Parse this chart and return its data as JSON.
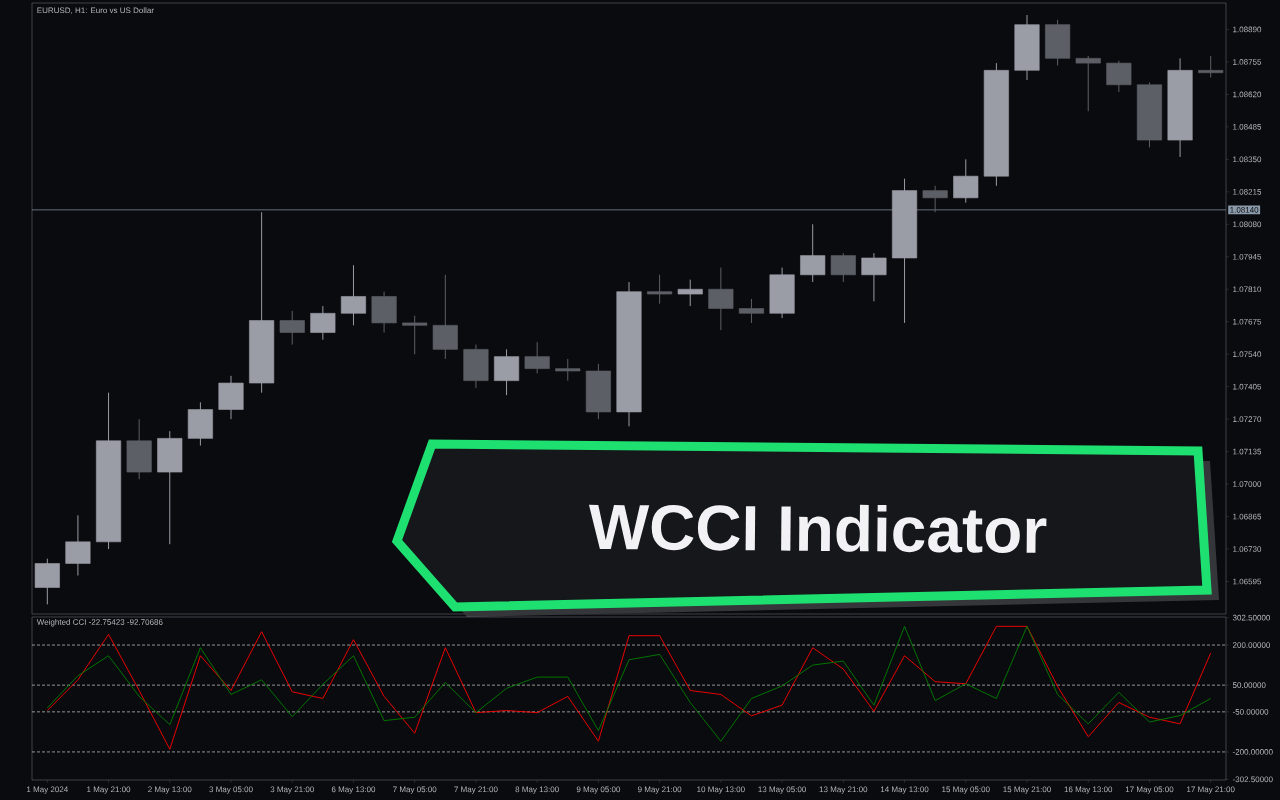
{
  "chart_data": [
    {
      "type": "candlestick",
      "title": "EURUSD, H1:  Euro vs US Dollar",
      "annotations": [
        "WCCI Indicator"
      ],
      "categories": [
        null,
        null,
        null,
        null,
        null,
        null,
        null,
        null,
        null,
        null,
        null,
        null,
        null,
        null,
        null,
        null,
        null,
        null,
        null,
        null,
        null,
        null,
        null,
        null,
        null,
        null,
        null,
        null,
        null,
        null,
        null,
        null,
        null,
        null,
        null,
        null,
        null,
        null,
        null
      ],
      "ohlc": [
        [
          1.0657,
          1.0669,
          1.065,
          1.0667
        ],
        [
          1.0667,
          1.0687,
          1.0662,
          1.0676
        ],
        [
          1.0676,
          1.0738,
          1.0673,
          1.0718
        ],
        [
          1.0718,
          1.0727,
          1.0702,
          1.0705
        ],
        [
          1.0705,
          1.0722,
          1.0675,
          1.0719
        ],
        [
          1.0719,
          1.0734,
          1.0716,
          1.0731
        ],
        [
          1.0731,
          1.0745,
          1.0727,
          1.0742
        ],
        [
          1.0742,
          1.0813,
          1.0738,
          1.0768
        ],
        [
          1.0768,
          1.0772,
          1.0758,
          1.0763
        ],
        [
          1.0763,
          1.0774,
          1.076,
          1.0771
        ],
        [
          1.0771,
          1.0791,
          1.0766,
          1.0778
        ],
        [
          1.0778,
          1.078,
          1.0763,
          1.0767
        ],
        [
          1.0767,
          1.077,
          1.0754,
          1.0766
        ],
        [
          1.0766,
          1.0787,
          1.0752,
          1.0756
        ],
        [
          1.0756,
          1.0758,
          1.074,
          1.0743
        ],
        [
          1.0743,
          1.0756,
          1.0737,
          1.0753
        ],
        [
          1.0753,
          1.0759,
          1.0746,
          1.0748
        ],
        [
          1.0748,
          1.0752,
          1.0743,
          1.0747
        ],
        [
          1.0747,
          1.075,
          1.0727,
          1.073
        ],
        [
          1.073,
          1.0784,
          1.0724,
          1.078
        ],
        [
          1.078,
          1.0787,
          1.0775,
          1.0779
        ],
        [
          1.0779,
          1.0785,
          1.0774,
          1.0781
        ],
        [
          1.0781,
          1.079,
          1.0764,
          1.0773
        ],
        [
          1.0773,
          1.0777,
          1.0767,
          1.0771
        ],
        [
          1.0771,
          1.079,
          1.0769,
          1.0787
        ],
        [
          1.0787,
          1.0808,
          1.0784,
          1.0795
        ],
        [
          1.0795,
          1.0796,
          1.0784,
          1.0787
        ],
        [
          1.0787,
          1.0796,
          1.0776,
          1.0794
        ],
        [
          1.0794,
          1.0827,
          1.0767,
          1.0822
        ],
        [
          1.0822,
          1.0824,
          1.0813,
          1.0819
        ],
        [
          1.0819,
          1.0835,
          1.0817,
          1.0828
        ],
        [
          1.0828,
          1.0875,
          1.0824,
          1.0872
        ],
        [
          1.0872,
          1.0895,
          1.0868,
          1.0891
        ],
        [
          1.0891,
          1.0893,
          1.0874,
          1.0877
        ],
        [
          1.0877,
          1.0878,
          1.0855,
          1.0875
        ],
        [
          1.0875,
          1.0876,
          1.0863,
          1.0866
        ],
        [
          1.0866,
          1.0867,
          1.084,
          1.0843
        ],
        [
          1.0843,
          1.0877,
          1.0836,
          1.0872
        ],
        [
          1.0872,
          1.0878,
          1.0869,
          1.0871
        ]
      ],
      "colors": [
        "#9a9ca6",
        "#9a9ca6",
        "#9a9ca6",
        "#5d5f66",
        "#9a9ca6",
        "#9a9ca6",
        "#9a9ca6",
        "#9a9ca6",
        "#5d5f66",
        "#9a9ca6",
        "#9a9ca6",
        "#5d5f66",
        "#5d5f66",
        "#5d5f66",
        "#5d5f66",
        "#9a9ca6",
        "#5d5f66",
        "#5d5f66",
        "#5d5f66",
        "#9a9ca6",
        "#5d5f66",
        "#9a9ca6",
        "#5d5f66",
        "#5d5f66",
        "#9a9ca6",
        "#9a9ca6",
        "#5d5f66",
        "#9a9ca6",
        "#9a9ca6",
        "#5d5f66",
        "#9a9ca6",
        "#9a9ca6",
        "#9a9ca6",
        "#5d5f66",
        "#5d5f66",
        "#5d5f66",
        "#5d5f66",
        "#9a9ca6",
        "#5d5f66"
      ],
      "ylim": [
        1.0646,
        1.09
      ],
      "yticks": [
        {
          "value": 1.06595,
          "label": "1.06595"
        },
        {
          "value": 1.0673,
          "label": "1.06730"
        },
        {
          "value": 1.06865,
          "label": "1.06865"
        },
        {
          "value": 1.07,
          "label": "1.07000"
        },
        {
          "value": 1.07135,
          "label": "1.07135"
        },
        {
          "value": 1.0727,
          "label": "1.07270"
        },
        {
          "value": 1.07405,
          "label": "1.07405"
        },
        {
          "value": 1.0754,
          "label": "1.07540"
        },
        {
          "value": 1.07675,
          "label": "1.07675"
        },
        {
          "value": 1.0781,
          "label": "1.07810"
        },
        {
          "value": 1.07945,
          "label": "1.07945"
        },
        {
          "value": 1.0808,
          "label": "1.08080"
        },
        {
          "value": 1.08215,
          "label": "1.08215"
        },
        {
          "value": 1.0835,
          "label": "1.08350"
        },
        {
          "value": 1.08485,
          "label": "1.08485"
        },
        {
          "value": 1.0862,
          "label": "1.08620"
        },
        {
          "value": 1.08755,
          "label": "1.08755"
        },
        {
          "value": 1.0889,
          "label": "1.08890"
        }
      ],
      "ref_lines": [
        {
          "axis": "y",
          "value": 1.0814,
          "label": "1.08140",
          "color": "#8c9bab"
        }
      ],
      "tick_labels": "y"
    },
    {
      "type": "line",
      "title": "Weighted CCI -22.75423 -92.70686",
      "categories": [
        "1 May 2024",
        null,
        "1 May 21:00",
        null,
        "2 May 13:00",
        null,
        "3 May 05:00",
        null,
        "3 May 21:00",
        null,
        "6 May 13:00",
        null,
        "7 May 05:00",
        null,
        "7 May 21:00",
        null,
        "8 May 13:00",
        null,
        "9 May 05:00",
        null,
        "9 May 21:00",
        null,
        "10 May 13:00",
        null,
        "13 May 05:00",
        null,
        "13 May 21:00",
        null,
        "14 May 13:00",
        null,
        "15 May 05:00",
        null,
        "15 May 21:00",
        null,
        "16 May 13:00",
        null,
        "17 May 05:00",
        null,
        "17 May 21:00"
      ],
      "series": [
        {
          "color": "#ff0000",
          "values": [
            -45,
            70,
            240,
            30,
            -190,
            160,
            30,
            250,
            25,
            0,
            220,
            8,
            -130,
            190,
            -53,
            -45,
            -53,
            8,
            -160,
            235,
            235,
            30,
            15,
            -65,
            -25,
            190,
            110,
            -48,
            160,
            63,
            55,
            270,
            270,
            45,
            -143,
            -15,
            -70,
            -95,
            170
          ]
        },
        {
          "color": "#008000",
          "values": [
            -35,
            85,
            160,
            8,
            -98,
            190,
            15,
            70,
            -68,
            53,
            160,
            -83,
            -70,
            60,
            -53,
            38,
            80,
            80,
            -120,
            145,
            165,
            -15,
            -160,
            0,
            47,
            125,
            140,
            -25,
            270,
            -8,
            55,
            0,
            270,
            15,
            -95,
            23,
            -88,
            -64,
            0
          ]
        }
      ],
      "ylim": [
        -305,
        305
      ],
      "yticks": [
        {
          "value": 302.5,
          "label": "302.50000"
        },
        {
          "value": 200,
          "label": "200.00000"
        },
        {
          "value": 50,
          "label": "50.00000"
        },
        {
          "value": -50,
          "label": "-50.00000"
        },
        {
          "value": -200,
          "label": "-200.00000"
        },
        {
          "value": -302.5,
          "label": "-302.50000"
        }
      ],
      "ref_lines": [
        {
          "axis": "y",
          "value": 200,
          "color": "#cfcfcf",
          "line_style": "dashed"
        },
        {
          "axis": "y",
          "value": 50,
          "color": "#cfcfcf",
          "line_style": "dashed"
        },
        {
          "axis": "y",
          "value": -50,
          "color": "#cfcfcf",
          "line_style": "dashed"
        },
        {
          "axis": "y",
          "value": -200,
          "color": "#cfcfcf",
          "line_style": "dashed"
        }
      ]
    }
  ]
}
